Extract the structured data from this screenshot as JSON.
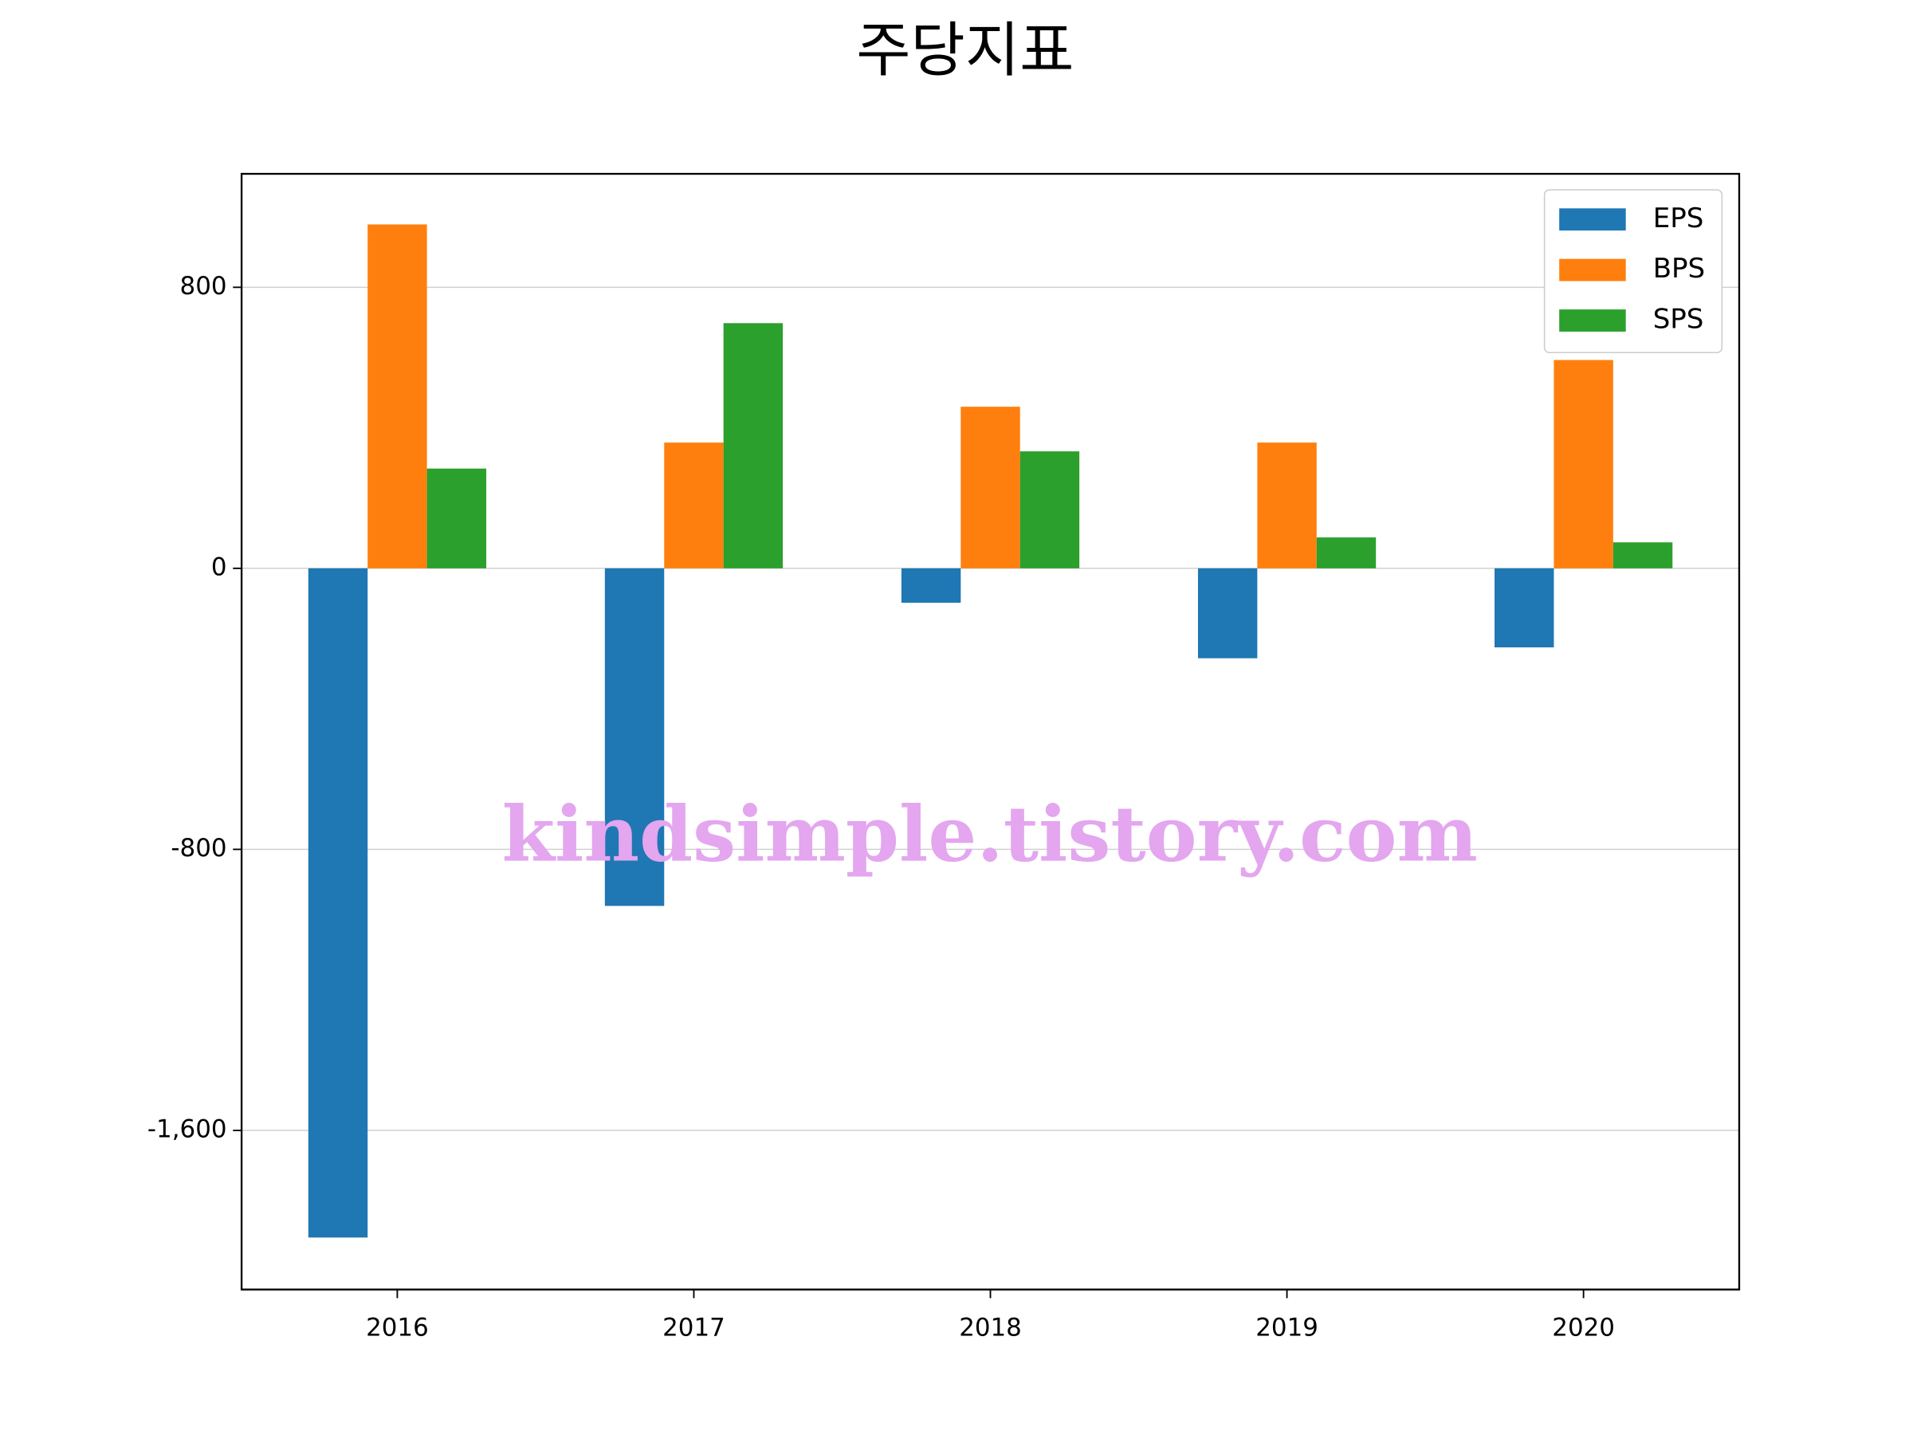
{
  "chart_data": {
    "type": "bar",
    "title": "주당지표",
    "categories": [
      "2016",
      "2017",
      "2018",
      "2019",
      "2020"
    ],
    "series": [
      {
        "name": "EPS",
        "color": "#1f77b4",
        "values": [
          -1905,
          -961,
          -98,
          -256,
          -225
        ]
      },
      {
        "name": "BPS",
        "color": "#ff7f0e",
        "values": [
          979,
          358,
          460,
          358,
          593
        ]
      },
      {
        "name": "SPS",
        "color": "#2ca02c",
        "values": [
          284,
          698,
          333,
          88,
          74
        ]
      }
    ],
    "ylim": [
      -2053,
      1123
    ],
    "yticks": [
      {
        "value": -1600,
        "label": "-1,600"
      },
      -800,
      0,
      800
    ],
    "grid": true,
    "legend": "upper right",
    "annotation": "kindsimple.tistory.com"
  }
}
